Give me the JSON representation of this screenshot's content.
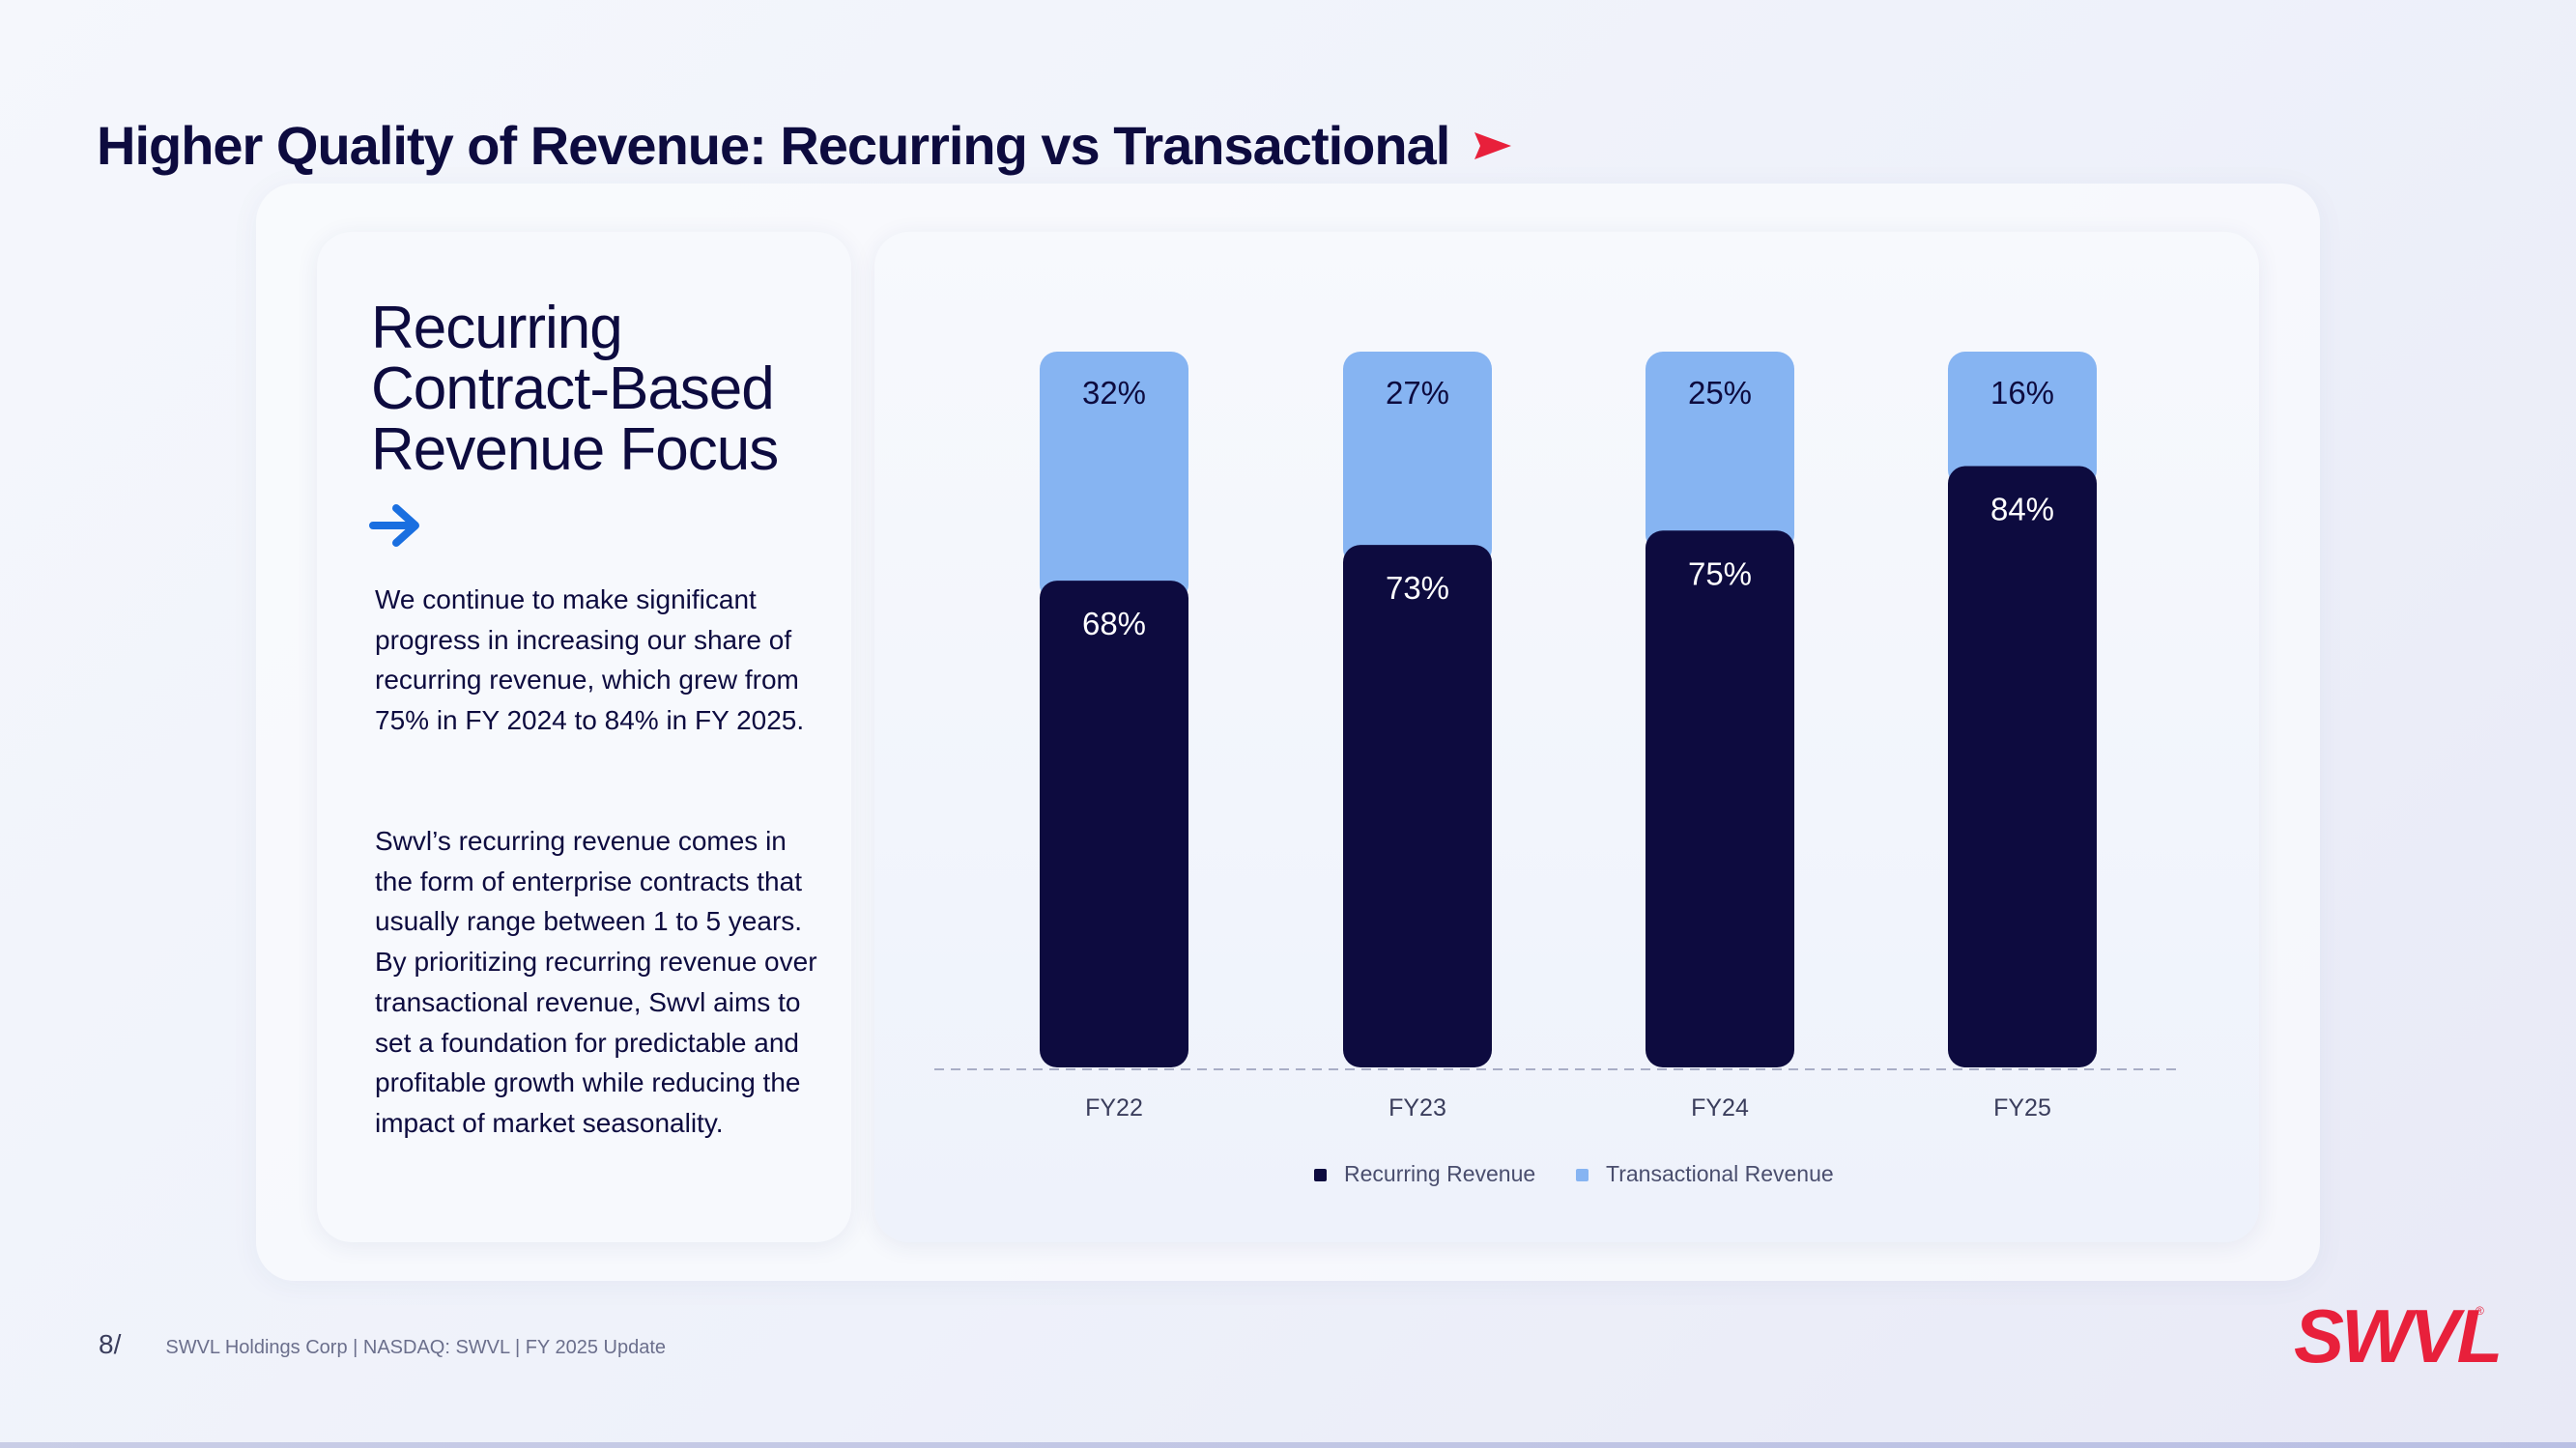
{
  "page": {
    "title": "Higher Quality of Revenue: Recurring vs Transactional",
    "page_number": "8/",
    "footer": "SWVL Holdings Corp  |  NASDAQ: SWVL  |  FY 2025 Update",
    "logo": "SWVL",
    "logo_mark": "®",
    "accent_color": "#e8203b",
    "arrow_color": "#1a6fe0"
  },
  "text_card": {
    "heading": "Recurring Contract-Based Revenue Focus",
    "paragraph_1": "We continue to make significant progress in increasing our share of recurring revenue, which grew from 75% in FY 2024 to 84% in FY 2025.",
    "paragraph_2": "Swvl’s recurring revenue comes in the form of enterprise contracts that usually range between 1 to 5 years. By prioritizing recurring revenue over transactional revenue, Swvl aims to set a foundation for predictable and profitable growth while reducing the impact of market seasonality."
  },
  "chart_data": {
    "type": "bar",
    "stacked": true,
    "categories": [
      "FY22",
      "FY23",
      "FY24",
      "FY25"
    ],
    "series": [
      {
        "name": "Recurring Revenue",
        "values": [
          68,
          73,
          75,
          84
        ],
        "labels": [
          "68%",
          "73%",
          "75%",
          "84%"
        ],
        "color": "#0d0b3f"
      },
      {
        "name": "Transactional Revenue",
        "values": [
          32,
          27,
          25,
          16
        ],
        "labels": [
          "32%",
          "27%",
          "25%",
          "16%"
        ],
        "color": "#86b4f2"
      }
    ],
    "ylim": [
      0,
      100
    ],
    "grid": false,
    "legend": "bottom-center"
  }
}
